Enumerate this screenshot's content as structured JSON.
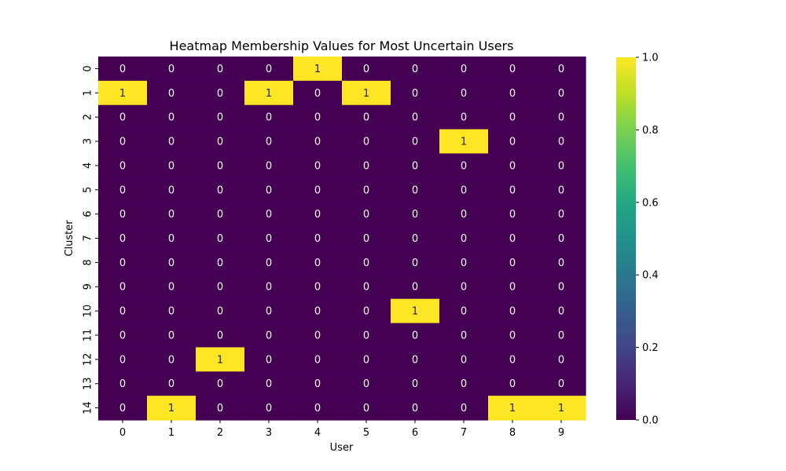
{
  "chart_data": {
    "type": "heatmap",
    "title": "Heatmap Membership Values for Most Uncertain Users",
    "xlabel": "User",
    "ylabel": "Cluster",
    "x_categories": [
      "0",
      "1",
      "2",
      "3",
      "4",
      "5",
      "6",
      "7",
      "8",
      "9"
    ],
    "y_categories": [
      "0",
      "1",
      "2",
      "3",
      "4",
      "5",
      "6",
      "7",
      "8",
      "9",
      "10",
      "11",
      "12",
      "13",
      "14"
    ],
    "values": [
      [
        0,
        0,
        0,
        0,
        1,
        0,
        0,
        0,
        0,
        0
      ],
      [
        1,
        0,
        0,
        1,
        0,
        1,
        0,
        0,
        0,
        0
      ],
      [
        0,
        0,
        0,
        0,
        0,
        0,
        0,
        0,
        0,
        0
      ],
      [
        0,
        0,
        0,
        0,
        0,
        0,
        0,
        1,
        0,
        0
      ],
      [
        0,
        0,
        0,
        0,
        0,
        0,
        0,
        0,
        0,
        0
      ],
      [
        0,
        0,
        0,
        0,
        0,
        0,
        0,
        0,
        0,
        0
      ],
      [
        0,
        0,
        0,
        0,
        0,
        0,
        0,
        0,
        0,
        0
      ],
      [
        0,
        0,
        0,
        0,
        0,
        0,
        0,
        0,
        0,
        0
      ],
      [
        0,
        0,
        0,
        0,
        0,
        0,
        0,
        0,
        0,
        0
      ],
      [
        0,
        0,
        0,
        0,
        0,
        0,
        0,
        0,
        0,
        0
      ],
      [
        0,
        0,
        0,
        0,
        0,
        0,
        1,
        0,
        0,
        0
      ],
      [
        0,
        0,
        0,
        0,
        0,
        0,
        0,
        0,
        0,
        0
      ],
      [
        0,
        0,
        1,
        0,
        0,
        0,
        0,
        0,
        0,
        0
      ],
      [
        0,
        0,
        0,
        0,
        0,
        0,
        0,
        0,
        0,
        0
      ],
      [
        0,
        1,
        0,
        0,
        0,
        0,
        0,
        0,
        1,
        1
      ]
    ],
    "colormap": "viridis",
    "vmin": 0.0,
    "vmax": 1.0,
    "colorbar_ticks": [
      "0.0",
      "0.2",
      "0.4",
      "0.6",
      "0.8",
      "1.0"
    ],
    "annotated": true,
    "grid": false,
    "colors": {
      "low": "#440154",
      "high": "#fde725",
      "text_on_low": "#ffffff",
      "text_on_high": "#262626"
    }
  }
}
